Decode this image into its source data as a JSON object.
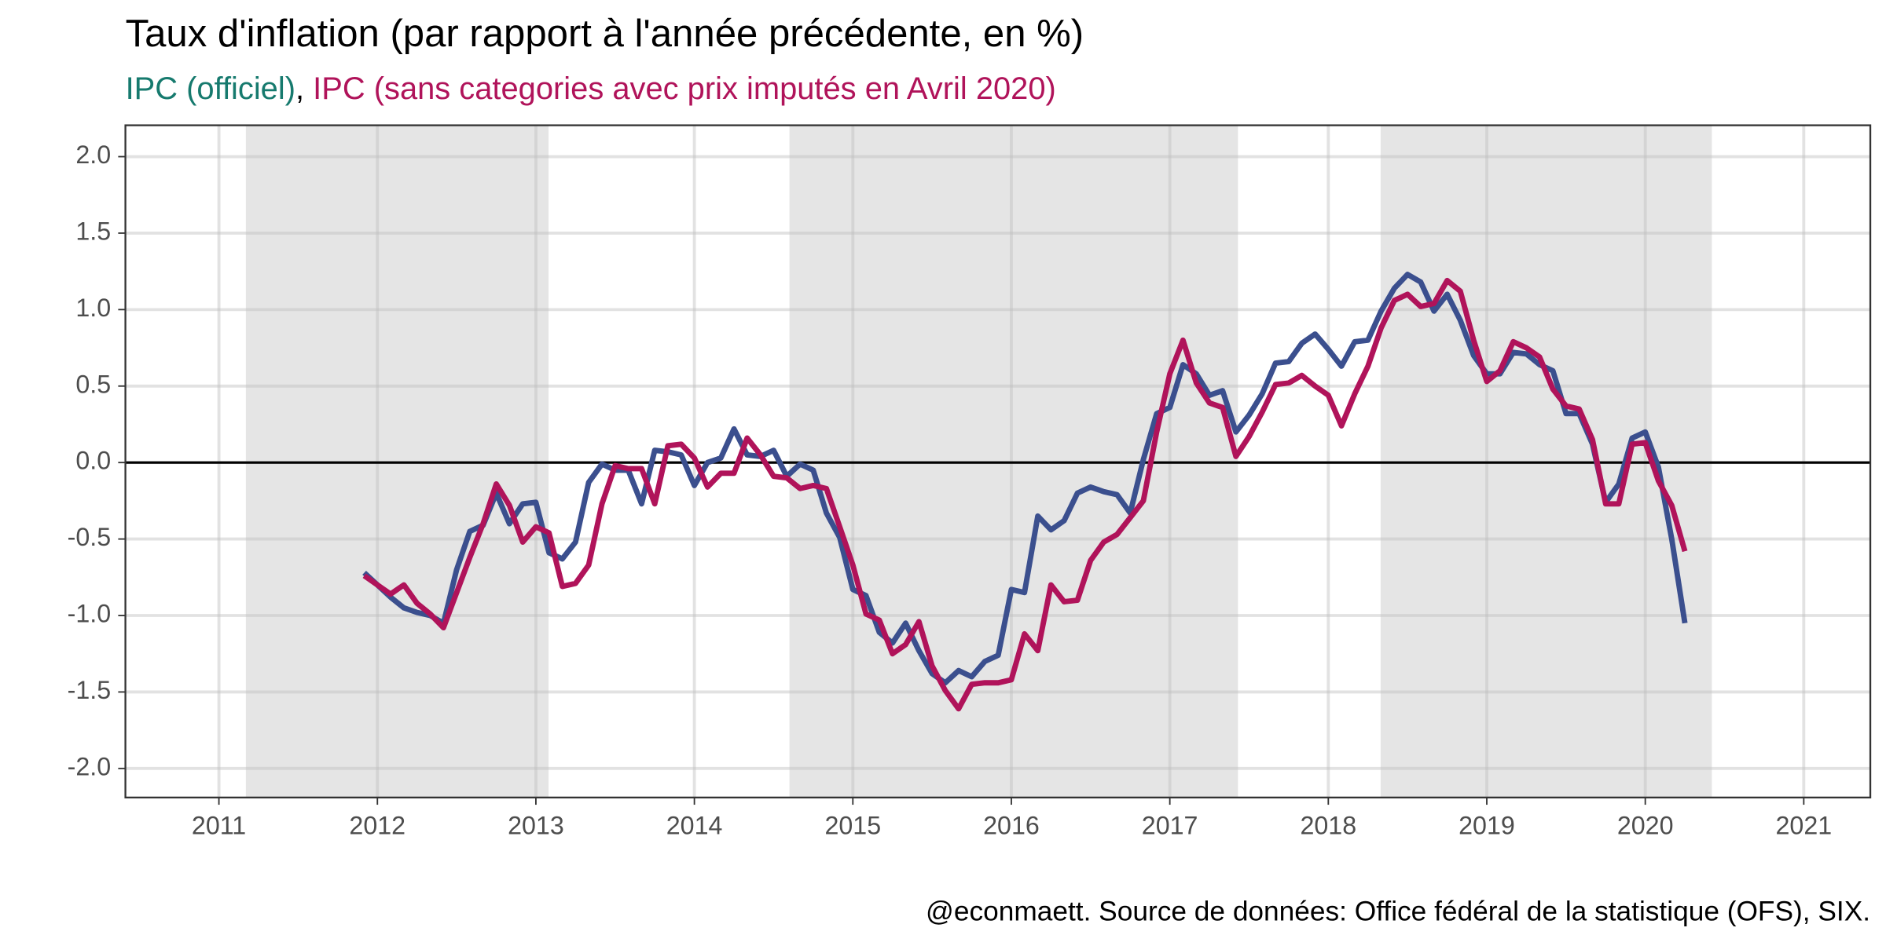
{
  "chart_data": {
    "type": "line",
    "title": "Taux d'inflation (par rapport à l'année précédente, en %)",
    "subtitle_separator": ", ",
    "caption": "@econmaett. Source de données: Office fédéral de la statistique (OFS), SIX.",
    "xlim": [
      2010.41,
      2021.42
    ],
    "xticks": [
      2011,
      2012,
      2013,
      2014,
      2015,
      2016,
      2017,
      2018,
      2019,
      2020,
      2021
    ],
    "ylim": [
      -2.19,
      2.205
    ],
    "yticks": [
      {
        "value": 2,
        "label": "2.0"
      },
      1.5,
      {
        "value": 1,
        "label": "1.0"
      },
      0.5,
      {
        "value": 0,
        "label": "0.0"
      },
      -0.5,
      {
        "value": -1,
        "label": "-1.0"
      },
      -1.5,
      {
        "value": -2,
        "label": "-2.0"
      }
    ],
    "grid": true,
    "reference_line": 0,
    "shaded_ranges": [
      [
        2011.17,
        2013.08
      ],
      [
        2014.6,
        2017.43
      ],
      [
        2018.33,
        2020.42
      ]
    ],
    "shade_color": "#e5e5e5",
    "x": [
      2011.917,
      2012.0,
      2012.083,
      2012.167,
      2012.25,
      2012.333,
      2012.417,
      2012.5,
      2012.583,
      2012.667,
      2012.75,
      2012.833,
      2012.917,
      2013.0,
      2013.083,
      2013.167,
      2013.25,
      2013.333,
      2013.417,
      2013.5,
      2013.583,
      2013.667,
      2013.75,
      2013.833,
      2013.917,
      2014.0,
      2014.083,
      2014.167,
      2014.25,
      2014.333,
      2014.417,
      2014.5,
      2014.583,
      2014.667,
      2014.75,
      2014.833,
      2014.917,
      2015.0,
      2015.083,
      2015.167,
      2015.25,
      2015.333,
      2015.417,
      2015.5,
      2015.583,
      2015.667,
      2015.75,
      2015.833,
      2015.917,
      2016.0,
      2016.083,
      2016.167,
      2016.25,
      2016.333,
      2016.417,
      2016.5,
      2016.583,
      2016.667,
      2016.75,
      2016.833,
      2016.917,
      2017.0,
      2017.083,
      2017.167,
      2017.25,
      2017.333,
      2017.417,
      2017.5,
      2017.583,
      2017.667,
      2017.75,
      2017.833,
      2017.917,
      2018.0,
      2018.083,
      2018.167,
      2018.25,
      2018.333,
      2018.417,
      2018.5,
      2018.583,
      2018.667,
      2018.75,
      2018.833,
      2018.917,
      2019.0,
      2019.083,
      2019.167,
      2019.25,
      2019.333,
      2019.417,
      2019.5,
      2019.583,
      2019.667,
      2019.75,
      2019.833,
      2019.917,
      2020.0,
      2020.083,
      2020.167,
      2020.25
    ],
    "series": [
      {
        "name": "IPC (officiel)",
        "color": "#3b4f8e",
        "label_color": "#167a6e",
        "values": [
          -0.72,
          -0.8,
          -0.88,
          -0.95,
          -0.98,
          -1.0,
          -1.05,
          -0.7,
          -0.45,
          -0.41,
          -0.2,
          -0.4,
          -0.27,
          -0.26,
          -0.59,
          -0.63,
          -0.52,
          -0.13,
          -0.01,
          -0.05,
          -0.05,
          -0.27,
          0.08,
          0.07,
          0.05,
          -0.15,
          0.0,
          0.03,
          0.22,
          0.05,
          0.04,
          0.08,
          -0.09,
          -0.01,
          -0.05,
          -0.33,
          -0.49,
          -0.83,
          -0.87,
          -1.11,
          -1.18,
          -1.05,
          -1.23,
          -1.38,
          -1.44,
          -1.36,
          -1.4,
          -1.3,
          -1.26,
          -0.83,
          -0.85,
          -0.35,
          -0.44,
          -0.38,
          -0.2,
          -0.16,
          -0.19,
          -0.21,
          -0.33,
          0.02,
          0.32,
          0.36,
          0.64,
          0.58,
          0.44,
          0.47,
          0.2,
          0.31,
          0.45,
          0.65,
          0.66,
          0.78,
          0.84,
          0.74,
          0.63,
          0.79,
          0.8,
          0.99,
          1.14,
          1.23,
          1.18,
          0.99,
          1.1,
          0.93,
          0.7,
          0.58,
          0.58,
          0.72,
          0.71,
          0.64,
          0.6,
          0.32,
          0.32,
          0.12,
          -0.26,
          -0.14,
          0.16,
          0.2,
          -0.03,
          -0.5,
          -1.05
        ]
      },
      {
        "name": "IPC (sans categories avec prix imputés en Avril 2020)",
        "color": "#b0135a",
        "label_color": "#b0135a",
        "values": [
          -0.74,
          -0.8,
          -0.86,
          -0.8,
          -0.92,
          -0.99,
          -1.08,
          -0.85,
          -0.62,
          -0.4,
          -0.14,
          -0.28,
          -0.52,
          -0.42,
          -0.46,
          -0.81,
          -0.79,
          -0.67,
          -0.27,
          -0.02,
          -0.04,
          -0.04,
          -0.27,
          0.11,
          0.12,
          0.03,
          -0.16,
          -0.07,
          -0.07,
          0.16,
          0.05,
          -0.09,
          -0.1,
          -0.17,
          -0.15,
          -0.17,
          -0.42,
          -0.67,
          -0.99,
          -1.03,
          -1.25,
          -1.19,
          -1.04,
          -1.33,
          -1.49,
          -1.61,
          -1.45,
          -1.44,
          -1.44,
          -1.42,
          -1.12,
          -1.23,
          -0.8,
          -0.91,
          -0.9,
          -0.64,
          -0.52,
          -0.47,
          -0.36,
          -0.25,
          0.2,
          0.58,
          0.8,
          0.52,
          0.39,
          0.36,
          0.04,
          0.17,
          0.33,
          0.51,
          0.52,
          0.57,
          0.5,
          0.44,
          0.24,
          0.45,
          0.63,
          0.88,
          1.06,
          1.1,
          1.02,
          1.04,
          1.19,
          1.12,
          0.8,
          0.53,
          0.6,
          0.79,
          0.75,
          0.69,
          0.48,
          0.37,
          0.35,
          0.15,
          -0.27,
          -0.27,
          0.12,
          0.13,
          -0.12,
          -0.28,
          -0.58
        ]
      }
    ]
  }
}
